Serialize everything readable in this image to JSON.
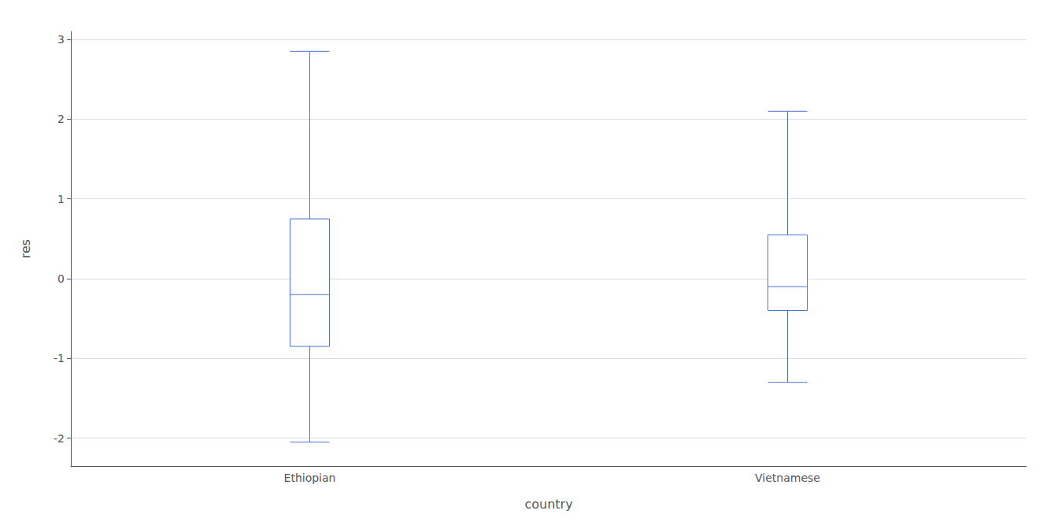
{
  "chart_data": {
    "type": "boxplot",
    "categories": [
      "Ethiopian",
      "Vietnamese"
    ],
    "boxes": [
      {
        "whisker_low": -2.05,
        "q1": -0.85,
        "median": -0.2,
        "q3": 0.75,
        "whisker_high": 2.85
      },
      {
        "whisker_low": -1.3,
        "q1": -0.4,
        "median": -0.1,
        "q3": 0.55,
        "whisker_high": 2.1
      }
    ],
    "xlabel": "country",
    "ylabel": "res",
    "ylim": [
      -2.35,
      3.1
    ],
    "yticks": [
      -2,
      -1,
      0,
      1,
      2,
      3
    ],
    "grid": true
  }
}
